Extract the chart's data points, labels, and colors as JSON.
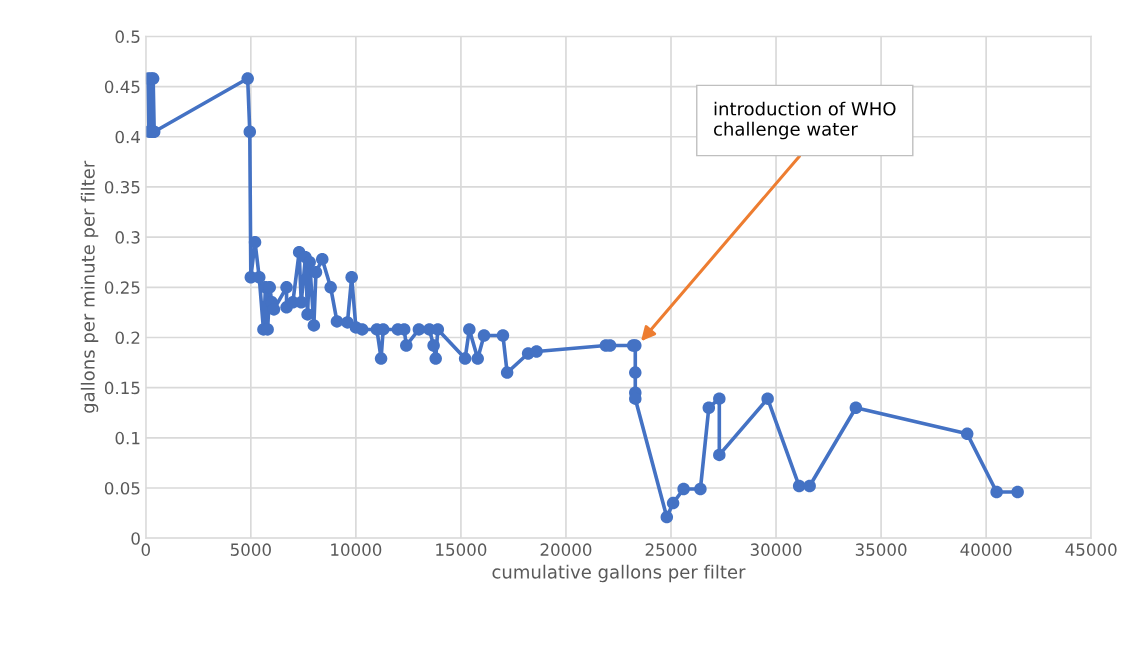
{
  "chart_data": {
    "type": "line",
    "xlabel": "cumulative gallons per filter",
    "ylabel": "gallons per minute per filter",
    "xlim": [
      0,
      45000
    ],
    "xticks": [
      0,
      5000,
      10000,
      15000,
      20000,
      25000,
      30000,
      35000,
      40000,
      45000
    ],
    "ylim": [
      0,
      0.5
    ],
    "yticks": [
      0,
      0.05,
      0.1,
      0.15,
      0.2,
      0.25,
      0.3,
      0.35,
      0.4,
      0.45,
      0.5
    ],
    "grid": true,
    "marker": "circle",
    "line_style": "solid",
    "series": [
      {
        "color": "#4472c4",
        "x": [
          100,
          150,
          250,
          300,
          350,
          400,
          4850,
          4950,
          5000,
          5200,
          5400,
          5600,
          5700,
          5800,
          5900,
          6000,
          6100,
          6700,
          6700,
          7000,
          7300,
          7400,
          7600,
          7700,
          7800,
          8000,
          8100,
          8400,
          8800,
          9100,
          9600,
          9800,
          10000,
          10300,
          11000,
          11200,
          11300,
          12000,
          12300,
          12400,
          13000,
          13500,
          13700,
          13800,
          13900,
          15200,
          15400,
          15800,
          16100,
          17000,
          17200,
          18200,
          18600,
          21900,
          22100,
          23200,
          23300,
          23300,
          23300,
          23300,
          24800,
          25100,
          25600,
          26400,
          26800,
          27300,
          27300,
          29600,
          31100,
          31600,
          33800,
          39100,
          40500,
          41500
        ],
        "values": [
          0.458,
          0.405,
          0.458,
          0.405,
          0.458,
          0.405,
          0.458,
          0.405,
          0.26,
          0.295,
          0.26,
          0.208,
          0.25,
          0.208,
          0.25,
          0.235,
          0.228,
          0.25,
          0.23,
          0.235,
          0.285,
          0.235,
          0.28,
          0.223,
          0.275,
          0.212,
          0.265,
          0.278,
          0.25,
          0.216,
          0.215,
          0.26,
          0.21,
          0.208,
          0.208,
          0.179,
          0.208,
          0.208,
          0.208,
          0.192,
          0.208,
          0.208,
          0.192,
          0.179,
          0.208,
          0.179,
          0.208,
          0.179,
          0.202,
          0.202,
          0.165,
          0.184,
          0.186,
          0.192,
          0.192,
          0.192,
          0.192,
          0.165,
          0.145,
          0.139,
          0.021,
          0.035,
          0.049,
          0.049,
          0.13,
          0.139,
          0.083,
          0.139,
          0.052,
          0.052,
          0.13,
          0.104,
          0.046,
          0.046
        ]
      }
    ],
    "annotations": [
      {
        "text": "introduction of WHO\nchallenge water",
        "x": 23400,
        "y": 0.192
      }
    ]
  }
}
